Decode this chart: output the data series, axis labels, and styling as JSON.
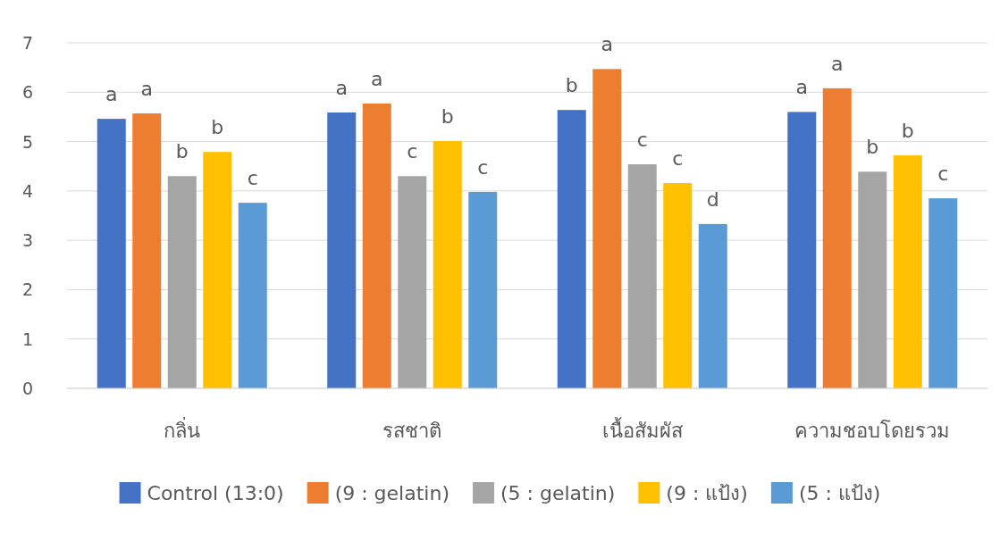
{
  "chart_data": {
    "type": "bar",
    "categories": [
      "กลิ่น",
      "รสชาติ",
      "เนื้อสัมผัส",
      "ความชอบโดยรวม"
    ],
    "series": [
      {
        "name": "Control (13:0)",
        "color": "#4472c4",
        "values": [
          5.46,
          5.59,
          5.64,
          5.6
        ],
        "value_labels": [
          "a",
          "a",
          "b",
          "a"
        ]
      },
      {
        "name": "(9 : gelatin)",
        "color": "#ed7d31",
        "values": [
          5.57,
          5.77,
          6.47,
          6.08
        ],
        "value_labels": [
          "a",
          "a",
          "a",
          "a"
        ]
      },
      {
        "name": "(5 : gelatin)",
        "color": "#a5a5a5",
        "values": [
          4.3,
          4.3,
          4.54,
          4.39
        ],
        "value_labels": [
          "b",
          "c",
          "c",
          "b"
        ]
      },
      {
        "name": "(9 : แป้ง)",
        "color": "#ffc000",
        "values": [
          4.79,
          5.01,
          4.16,
          4.72
        ],
        "value_labels": [
          "b",
          "b",
          "c",
          "b"
        ]
      },
      {
        "name": "(5 : แป้ง)",
        "color": "#5b9bd5",
        "values": [
          3.76,
          3.98,
          3.33,
          3.85
        ],
        "value_labels": [
          "c",
          "c",
          "d",
          "c"
        ]
      }
    ],
    "ylim": [
      0,
      7
    ],
    "yticks": [
      0,
      1,
      2,
      3,
      4,
      5,
      6,
      7
    ],
    "grid": "y",
    "legend": "bottom"
  }
}
